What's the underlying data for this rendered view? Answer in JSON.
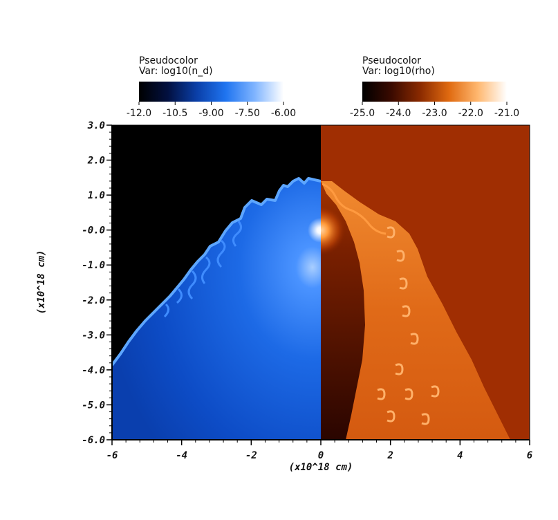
{
  "legends": [
    {
      "title": "Pseudocolor",
      "var": "Var: log10(n_d)",
      "ticks": [
        "-12.0",
        "-10.5",
        "-9.00",
        "-7.50",
        "-6.00"
      ],
      "colors": [
        "#000000",
        "#021040",
        "#0a3fa8",
        "#1f74f0",
        "#7fb4ff",
        "#ffffff"
      ]
    },
    {
      "title": "Pseudocolor",
      "var": "Var: log10(rho)",
      "ticks": [
        "-25.0",
        "-24.0",
        "-23.0",
        "-22.0",
        "-21.0"
      ],
      "colors": [
        "#000000",
        "#3a0a00",
        "#8a2a00",
        "#e06a10",
        "#ffb870",
        "#ffffff"
      ]
    }
  ],
  "chart_data": {
    "type": "heatmap",
    "panels": [
      {
        "name": "log10(n_d)",
        "x_range": [
          -6,
          0
        ],
        "colormap": "blue",
        "data_range": [
          -12.0,
          -6.0
        ]
      },
      {
        "name": "log10(rho)",
        "x_range": [
          0,
          6
        ],
        "colormap": "orange",
        "data_range": [
          -25.0,
          -21.0
        ]
      }
    ],
    "xlabel": "(x10^18 cm)",
    "ylabel": "(x10^18 cm)",
    "xlim": [
      -6,
      6
    ],
    "ylim": [
      -6,
      3
    ],
    "x_tick_labels": [
      "-6",
      "-4",
      "-2",
      "0",
      "2",
      "4",
      "6"
    ],
    "y_tick_labels": [
      "3.0",
      "2.0",
      "1.0",
      "-0.0",
      "-1.0",
      "-2.0",
      "-3.0",
      "-4.0",
      "-5.0",
      "-6.0"
    ]
  }
}
